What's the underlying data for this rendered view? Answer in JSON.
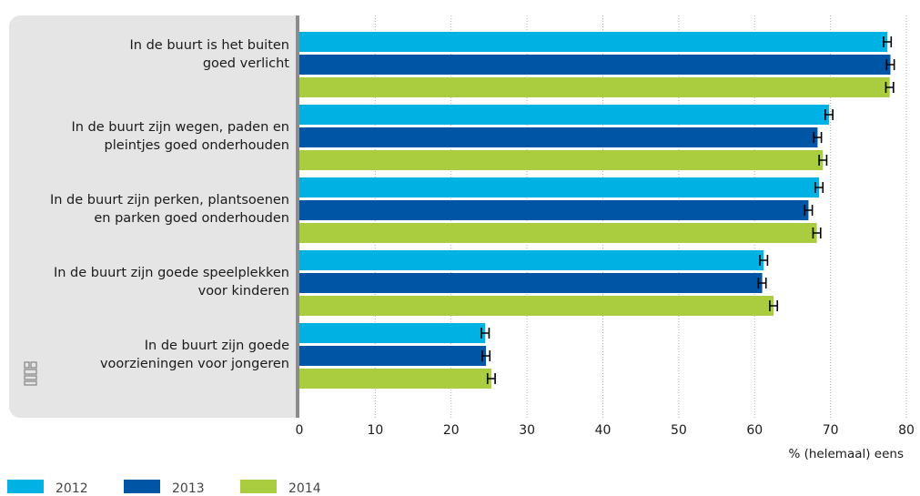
{
  "chart_data": {
    "type": "bar",
    "orientation": "horizontal",
    "categories": [
      "In de buurt is het buiten\ngoed verlicht",
      "In de buurt zijn wegen, paden en\npleintjes goed onderhouden",
      "In de buurt zijn perken, plantsoenen\nen parken goed onderhouden",
      "In de buurt zijn goede speelplekken\nvoor kinderen",
      "In de buurt zijn goede\nvoorzieningen voor jongeren"
    ],
    "series": [
      {
        "name": "2012",
        "color": "#00b2e3",
        "values": [
          77.5,
          69.8,
          68.5,
          61.2,
          24.5
        ]
      },
      {
        "name": "2013",
        "color": "#0055a5",
        "values": [
          77.9,
          68.3,
          67.1,
          61.0,
          24.6
        ]
      },
      {
        "name": "2014",
        "color": "#a9cd3e",
        "values": [
          77.8,
          69.0,
          68.2,
          62.5,
          25.3
        ]
      }
    ],
    "error_bars": true,
    "xlim": [
      0,
      80
    ],
    "xticks": [
      "0",
      "10",
      "20",
      "30",
      "40",
      "50",
      "60",
      "70",
      "80"
    ],
    "xlabel": "% (helemaal) eens",
    "grid": "vertical dotted",
    "legend_position": "bottom"
  }
}
